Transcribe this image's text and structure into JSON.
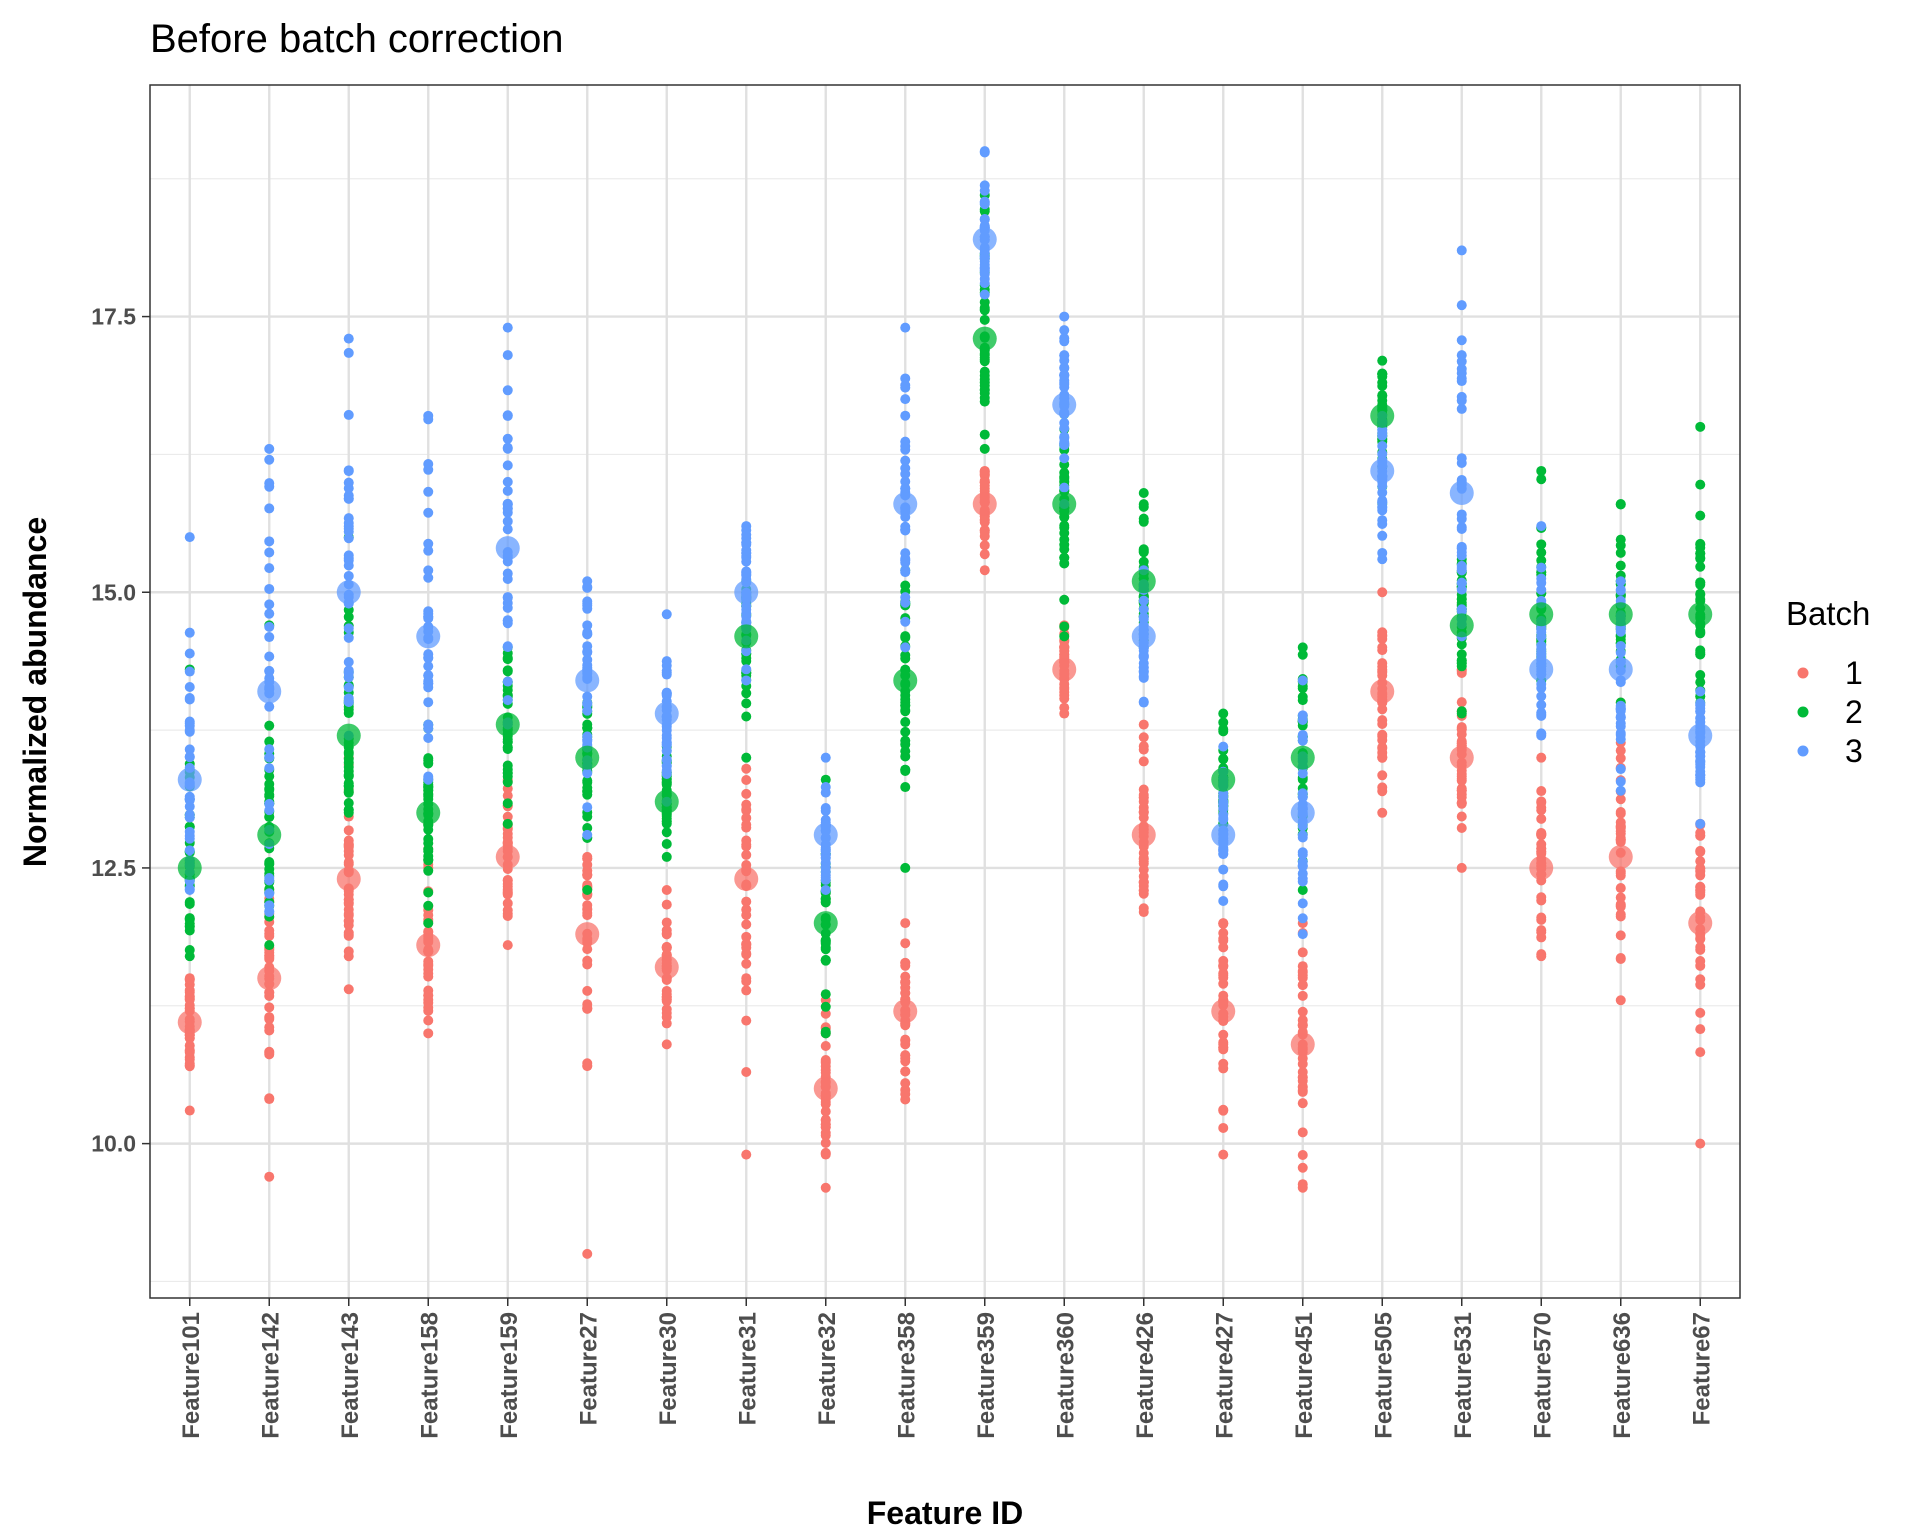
{
  "chart_data": {
    "type": "scatter",
    "title": "Before batch correction",
    "xlabel": "Feature ID",
    "ylabel": "Normalized abundance",
    "ylim": [
      8.6,
      19.6
    ],
    "yticks": [
      10.0,
      12.5,
      15.0,
      17.5
    ],
    "ytick_labels": [
      "10.0",
      "12.5",
      "15.0",
      "17.5"
    ],
    "grid": true,
    "legend": {
      "title": "Batch",
      "position": "right",
      "entries": [
        "1",
        "2",
        "3"
      ]
    },
    "colors": {
      "1": "#F8766D",
      "2": "#00BA38",
      "3": "#619CFF"
    },
    "categories": [
      "Feature101",
      "Feature142",
      "Feature143",
      "Feature158",
      "Feature159",
      "Feature27",
      "Feature30",
      "Feature31",
      "Feature32",
      "Feature358",
      "Feature359",
      "Feature360",
      "Feature426",
      "Feature427",
      "Feature451",
      "Feature505",
      "Feature531",
      "Feature570",
      "Feature636",
      "Feature67"
    ],
    "series": [
      {
        "name": "1",
        "mean": [
          11.1,
          11.5,
          12.4,
          11.8,
          12.6,
          11.9,
          11.6,
          12.4,
          10.5,
          11.2,
          15.8,
          14.3,
          12.8,
          11.2,
          10.9,
          14.1,
          13.5,
          12.5,
          12.6,
          12.0
        ],
        "min": [
          10.3,
          9.7,
          11.4,
          11.0,
          11.8,
          9.0,
          10.9,
          9.9,
          9.6,
          10.4,
          15.2,
          13.9,
          12.1,
          9.9,
          9.6,
          13.0,
          12.5,
          11.7,
          11.3,
          10.0
        ],
        "max": [
          11.5,
          12.3,
          13.5,
          12.9,
          13.3,
          12.6,
          12.3,
          13.4,
          11.3,
          12.0,
          16.1,
          14.7,
          13.8,
          12.0,
          12.0,
          15.0,
          14.3,
          13.5,
          14.0,
          12.9
        ]
      },
      {
        "name": "2",
        "mean": [
          12.5,
          12.8,
          13.7,
          13.0,
          13.8,
          13.5,
          13.1,
          14.6,
          12.0,
          14.2,
          17.3,
          15.8,
          15.1,
          13.3,
          13.5,
          16.6,
          14.7,
          14.8,
          14.8,
          14.8
        ],
        "min": [
          11.7,
          11.8,
          13.0,
          12.0,
          12.9,
          12.3,
          12.6,
          13.5,
          11.0,
          12.5,
          16.3,
          14.6,
          14.5,
          12.9,
          12.3,
          15.8,
          13.9,
          14.2,
          14.0,
          14.0
        ],
        "max": [
          14.3,
          14.7,
          15.5,
          13.8,
          14.5,
          14.0,
          13.6,
          15.1,
          13.3,
          15.2,
          18.6,
          16.7,
          15.9,
          13.9,
          14.5,
          17.1,
          15.3,
          16.1,
          15.8,
          16.5
        ]
      },
      {
        "name": "3",
        "mean": [
          13.3,
          14.1,
          15.0,
          14.6,
          15.4,
          14.2,
          13.9,
          15.0,
          12.8,
          15.8,
          18.2,
          16.7,
          14.6,
          12.8,
          13.0,
          16.1,
          15.9,
          14.3,
          14.3,
          13.7
        ],
        "min": [
          12.3,
          12.1,
          13.7,
          13.3,
          13.8,
          12.8,
          13.1,
          14.2,
          12.3,
          14.5,
          17.7,
          15.8,
          14.0,
          12.2,
          11.9,
          15.3,
          14.6,
          13.7,
          13.2,
          12.9
        ],
        "max": [
          15.5,
          16.3,
          17.3,
          16.6,
          17.4,
          15.1,
          14.8,
          15.6,
          13.5,
          17.4,
          19.0,
          17.5,
          15.2,
          13.6,
          14.2,
          16.6,
          18.1,
          15.6,
          15.1,
          14.1
        ]
      }
    ]
  }
}
